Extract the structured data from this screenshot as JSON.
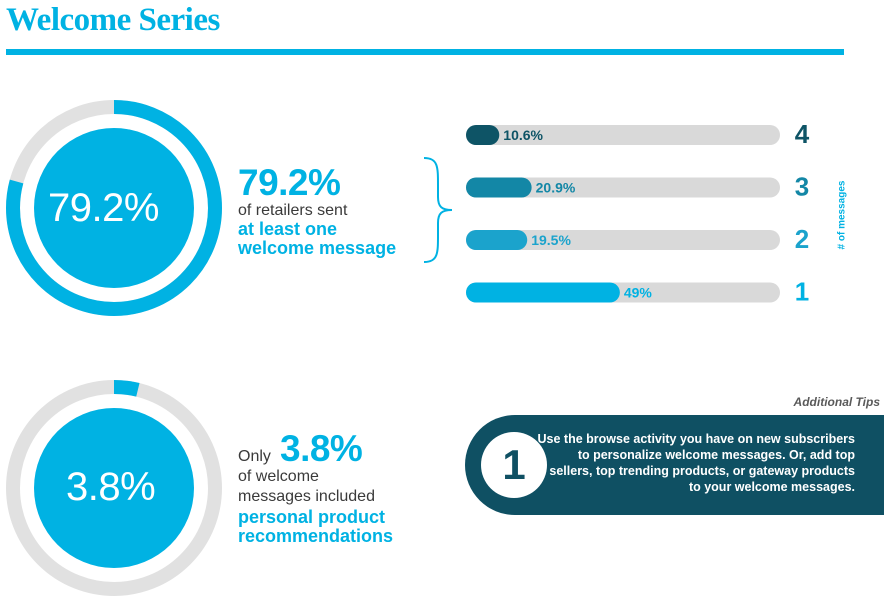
{
  "header": {
    "title": "Welcome Series"
  },
  "stat1": {
    "donut_value": 79.2,
    "donut_label": "79.2%",
    "big": "79.2%",
    "text": "of retailers sent",
    "emph_line1": "at least one",
    "emph_line2": "welcome message"
  },
  "stat2": {
    "donut_value": 3.8,
    "donut_label": "3.8%",
    "prefix": "Only",
    "big": "3.8%",
    "line1": "of welcome",
    "line2": "messages included",
    "emph_line1": "personal product",
    "emph_line2": "recommendations"
  },
  "chart_data": {
    "type": "bar",
    "orientation": "horizontal",
    "ylabel": "# of messages",
    "categories": [
      "4",
      "3",
      "2",
      "1"
    ],
    "values": [
      10.6,
      20.9,
      19.5,
      49
    ],
    "value_labels": [
      "10.6%",
      "20.9%",
      "19.5%",
      "49%"
    ],
    "xlim": [
      0,
      100
    ],
    "colors": [
      "#0e5466",
      "#1387a6",
      "#1ba3cc",
      "#00b2e3"
    ],
    "track_color": "#d9d9d9"
  },
  "tips": {
    "title": "Additional Tips",
    "number": "1",
    "text": "Use the browse activity you have on new subscribers to personalize welcome messages. Or, add top sellers, top trending products, or gateway products to your welcome messages."
  },
  "colors": {
    "accent": "#00b2e3",
    "dark_teal": "#0f5063",
    "ring_track": "#e1e1e1"
  }
}
